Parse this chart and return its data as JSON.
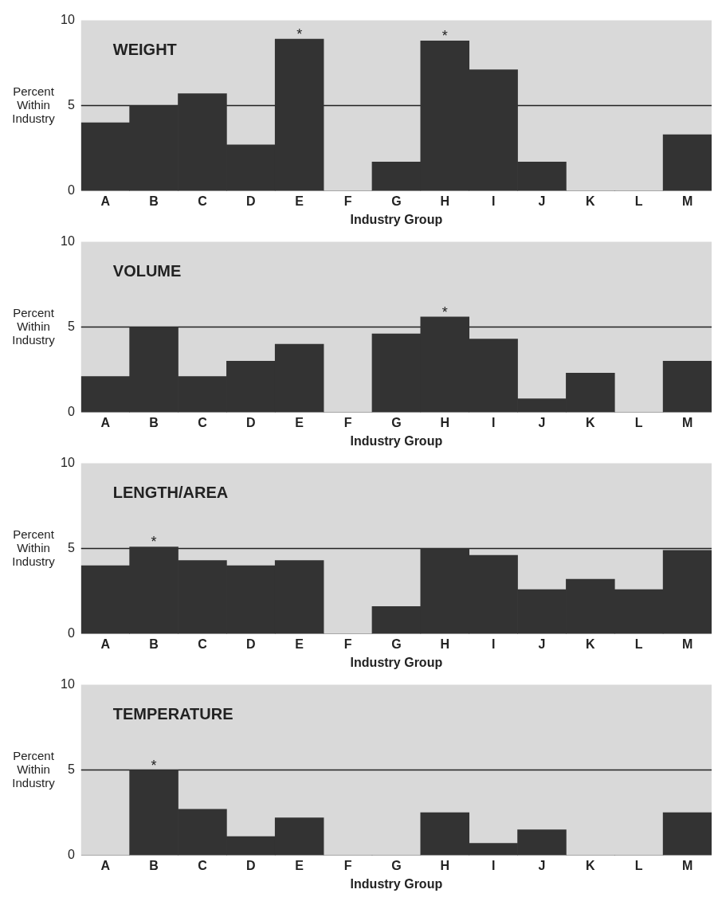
{
  "chart_data": [
    {
      "type": "bar",
      "title": "WEIGHT",
      "xlabel": "Industry Group",
      "ylabel": "Percent Within Industry",
      "categories": [
        "A",
        "B",
        "C",
        "D",
        "E",
        "F",
        "G",
        "H",
        "I",
        "J",
        "K",
        "L",
        "M"
      ],
      "values": [
        4.0,
        5.0,
        5.7,
        2.7,
        8.9,
        0,
        1.7,
        8.8,
        7.1,
        1.7,
        0,
        0,
        3.3
      ],
      "color": "#333333",
      "ylim": [
        0,
        10
      ],
      "yticks": [
        0,
        5,
        10
      ],
      "grid": false,
      "legend": false,
      "ref_lines": [
        {
          "axis": "y",
          "value": 5,
          "color": "#222222"
        }
      ],
      "annotations": [
        {
          "text": "*",
          "x": "E",
          "y": 8.9
        },
        {
          "text": "*",
          "x": "H",
          "y": 8.8
        }
      ]
    },
    {
      "type": "bar",
      "title": "VOLUME",
      "xlabel": "Industry Group",
      "ylabel": "Percent Within Industry",
      "categories": [
        "A",
        "B",
        "C",
        "D",
        "E",
        "F",
        "G",
        "H",
        "I",
        "J",
        "K",
        "L",
        "M"
      ],
      "values": [
        2.1,
        5.0,
        2.1,
        3.0,
        4.0,
        0,
        4.6,
        5.6,
        4.3,
        0.8,
        2.3,
        0,
        3.0
      ],
      "color": "#333333",
      "ylim": [
        0,
        10
      ],
      "yticks": [
        0,
        5,
        10
      ],
      "grid": false,
      "legend": false,
      "ref_lines": [
        {
          "axis": "y",
          "value": 5,
          "color": "#222222"
        }
      ],
      "annotations": [
        {
          "text": "*",
          "x": "H",
          "y": 5.6
        }
      ]
    },
    {
      "type": "bar",
      "title": "LENGTH/AREA",
      "xlabel": "Industry Group",
      "ylabel": "Percent Within Industry",
      "categories": [
        "A",
        "B",
        "C",
        "D",
        "E",
        "F",
        "G",
        "H",
        "I",
        "J",
        "K",
        "L",
        "M"
      ],
      "values": [
        4.0,
        5.1,
        4.3,
        4.0,
        4.3,
        0,
        1.6,
        5.0,
        4.6,
        2.6,
        3.2,
        2.6,
        4.9
      ],
      "color": "#333333",
      "ylim": [
        0,
        10
      ],
      "yticks": [
        0,
        5,
        10
      ],
      "grid": false,
      "legend": false,
      "ref_lines": [
        {
          "axis": "y",
          "value": 5,
          "color": "#222222"
        }
      ],
      "annotations": [
        {
          "text": "*",
          "x": "B",
          "y": 5.1
        }
      ]
    },
    {
      "type": "bar",
      "title": "TEMPERATURE",
      "xlabel": "Industry Group",
      "ylabel": "Percent Within Industry",
      "categories": [
        "A",
        "B",
        "C",
        "D",
        "E",
        "F",
        "G",
        "H",
        "I",
        "J",
        "K",
        "L",
        "M"
      ],
      "values": [
        0,
        5.0,
        2.7,
        1.1,
        2.2,
        0,
        0,
        2.5,
        0.7,
        1.5,
        0,
        0,
        2.5
      ],
      "color": "#333333",
      "ylim": [
        0,
        10
      ],
      "yticks": [
        0,
        5,
        10
      ],
      "grid": false,
      "legend": false,
      "ref_lines": [
        {
          "axis": "y",
          "value": 5,
          "color": "#222222"
        }
      ],
      "annotations": [
        {
          "text": "*",
          "x": "B",
          "y": 5.0
        }
      ]
    }
  ]
}
